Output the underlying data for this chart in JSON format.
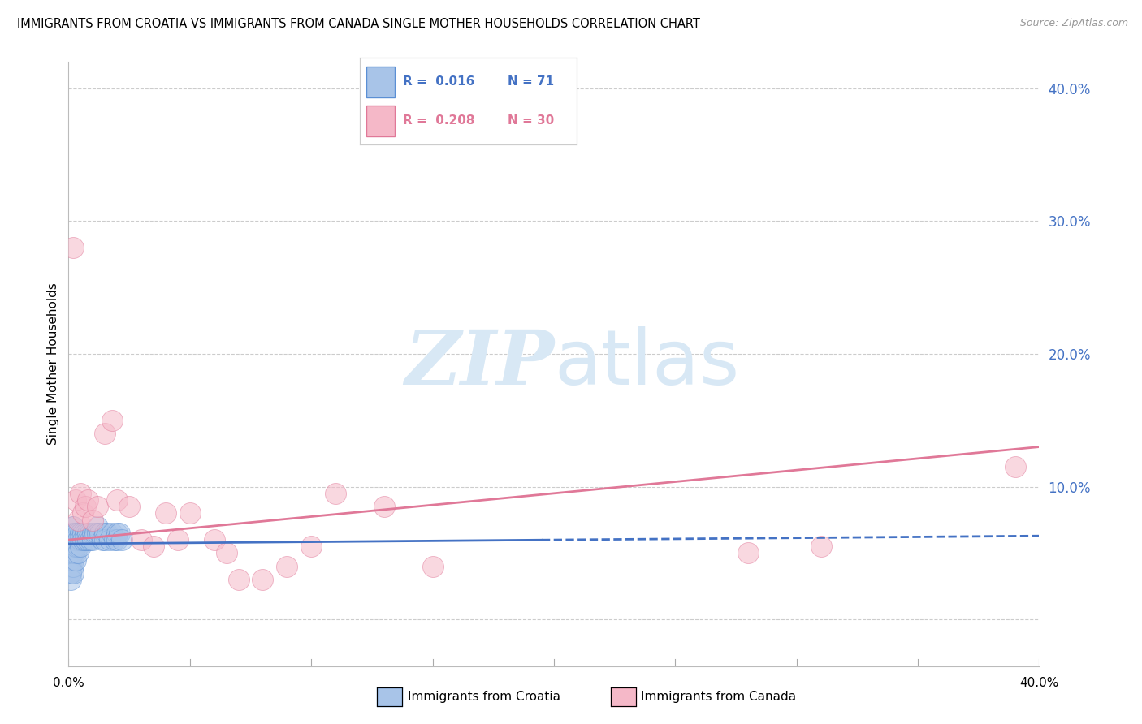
{
  "title": "IMMIGRANTS FROM CROATIA VS IMMIGRANTS FROM CANADA SINGLE MOTHER HOUSEHOLDS CORRELATION CHART",
  "source": "Source: ZipAtlas.com",
  "ylabel": "Single Mother Households",
  "xlim": [
    0.0,
    0.4
  ],
  "ylim": [
    -0.035,
    0.42
  ],
  "yticks": [
    0.0,
    0.1,
    0.2,
    0.3,
    0.4
  ],
  "ytick_labels": [
    "",
    "10.0%",
    "20.0%",
    "30.0%",
    "40.0%"
  ],
  "legend_r1": "R =  0.016",
  "legend_n1": "N = 71",
  "legend_r2": "R =  0.208",
  "legend_n2": "N = 30",
  "color_croatia_fill": "#a8c4e8",
  "color_croatia_edge": "#5b8fd4",
  "color_canada_fill": "#f5b8c8",
  "color_canada_edge": "#e07898",
  "color_line_croatia": "#4472c4",
  "color_line_canada": "#e07898",
  "watermark_zip": "ZIP",
  "watermark_atlas": "atlas",
  "watermark_color": "#d8e8f5",
  "croatia_x": [
    0.001,
    0.001,
    0.001,
    0.001,
    0.001,
    0.001,
    0.001,
    0.001,
    0.001,
    0.001,
    0.001,
    0.001,
    0.001,
    0.001,
    0.001,
    0.001,
    0.001,
    0.001,
    0.001,
    0.001,
    0.002,
    0.002,
    0.002,
    0.002,
    0.002,
    0.002,
    0.002,
    0.002,
    0.002,
    0.002,
    0.002,
    0.002,
    0.003,
    0.003,
    0.003,
    0.003,
    0.003,
    0.003,
    0.003,
    0.004,
    0.004,
    0.004,
    0.004,
    0.005,
    0.005,
    0.005,
    0.006,
    0.006,
    0.007,
    0.007,
    0.008,
    0.008,
    0.009,
    0.009,
    0.01,
    0.01,
    0.011,
    0.012,
    0.012,
    0.013,
    0.014,
    0.015,
    0.015,
    0.016,
    0.017,
    0.018,
    0.019,
    0.02,
    0.02,
    0.021,
    0.022
  ],
  "croatia_y": [
    0.055,
    0.06,
    0.05,
    0.045,
    0.065,
    0.04,
    0.035,
    0.055,
    0.05,
    0.06,
    0.04,
    0.035,
    0.045,
    0.055,
    0.06,
    0.05,
    0.035,
    0.03,
    0.055,
    0.06,
    0.07,
    0.055,
    0.06,
    0.05,
    0.045,
    0.04,
    0.065,
    0.055,
    0.06,
    0.05,
    0.035,
    0.07,
    0.06,
    0.055,
    0.05,
    0.045,
    0.065,
    0.055,
    0.06,
    0.065,
    0.06,
    0.055,
    0.05,
    0.065,
    0.06,
    0.055,
    0.065,
    0.06,
    0.065,
    0.06,
    0.065,
    0.06,
    0.065,
    0.06,
    0.065,
    0.06,
    0.065,
    0.07,
    0.065,
    0.065,
    0.06,
    0.065,
    0.06,
    0.065,
    0.06,
    0.065,
    0.06,
    0.065,
    0.06,
    0.065,
    0.06
  ],
  "canada_x": [
    0.002,
    0.003,
    0.004,
    0.005,
    0.006,
    0.007,
    0.008,
    0.01,
    0.012,
    0.015,
    0.018,
    0.02,
    0.025,
    0.03,
    0.035,
    0.04,
    0.045,
    0.05,
    0.06,
    0.065,
    0.07,
    0.08,
    0.09,
    0.1,
    0.11,
    0.13,
    0.15,
    0.28,
    0.31,
    0.39
  ],
  "canada_y": [
    0.28,
    0.09,
    0.075,
    0.095,
    0.08,
    0.085,
    0.09,
    0.075,
    0.085,
    0.14,
    0.15,
    0.09,
    0.085,
    0.06,
    0.055,
    0.08,
    0.06,
    0.08,
    0.06,
    0.05,
    0.03,
    0.03,
    0.04,
    0.055,
    0.095,
    0.085,
    0.04,
    0.05,
    0.055,
    0.115
  ],
  "regression_croatia_x0": 0.0,
  "regression_croatia_x1": 0.4,
  "regression_croatia_y0": 0.057,
  "regression_croatia_y1": 0.063,
  "regression_croatia_solid_x1": 0.195,
  "regression_canada_x0": 0.0,
  "regression_canada_x1": 0.4,
  "regression_canada_y0": 0.06,
  "regression_canada_y1": 0.13
}
